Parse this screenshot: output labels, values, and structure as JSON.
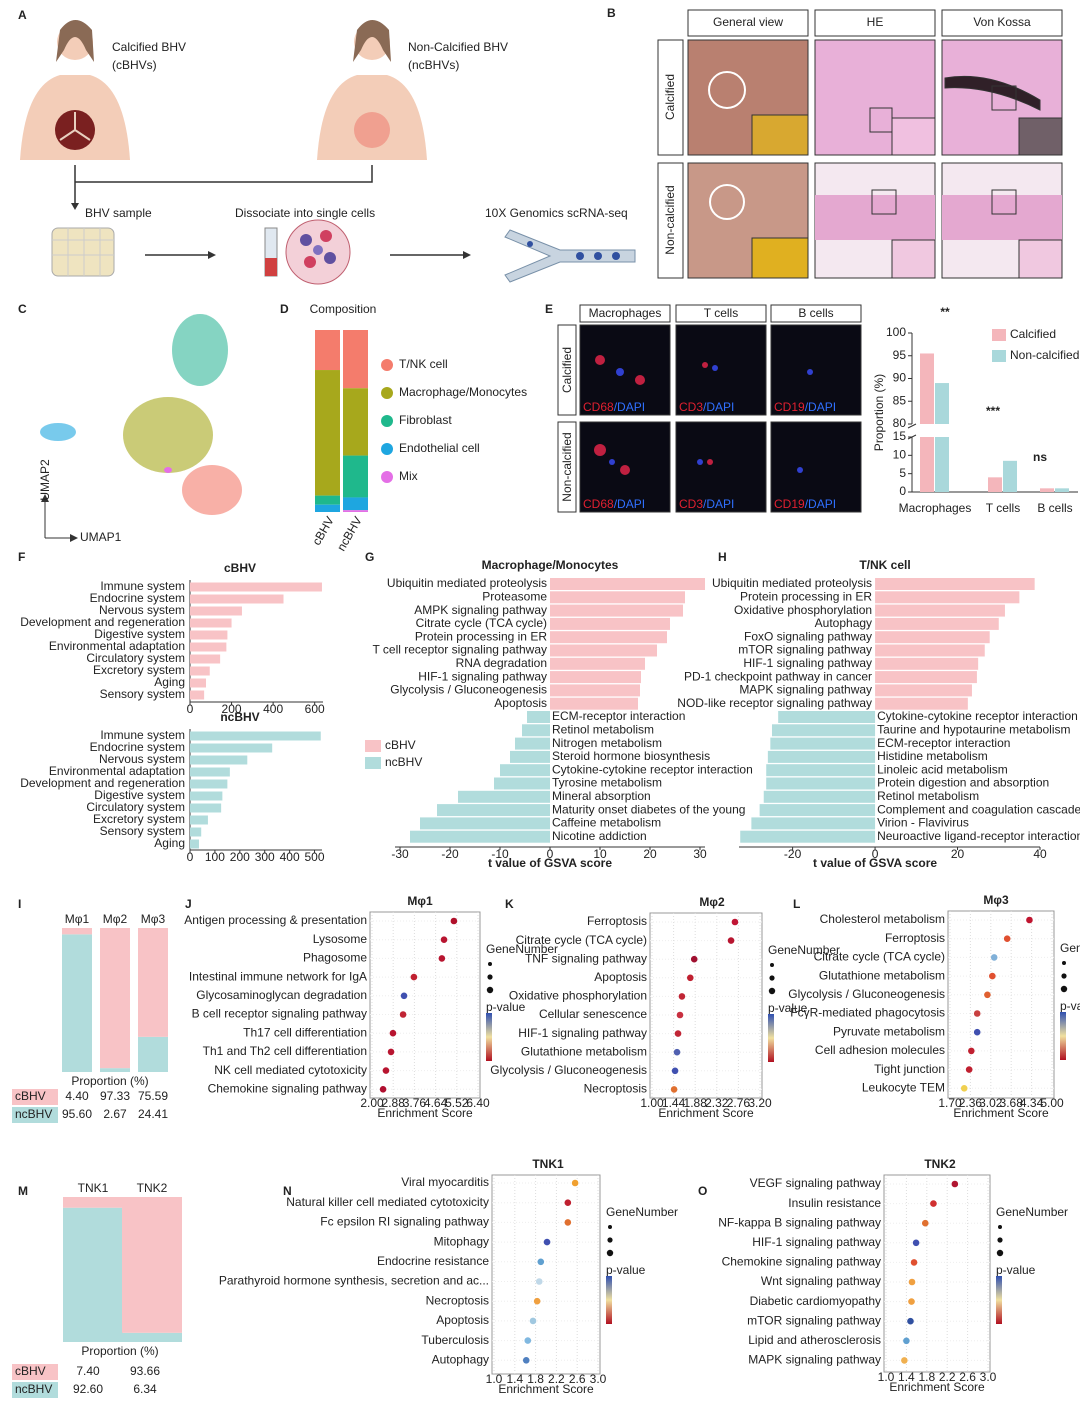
{
  "panel_labels": [
    "A",
    "B",
    "C",
    "D",
    "E",
    "F",
    "G",
    "H",
    "I",
    "J",
    "K",
    "L",
    "M",
    "N",
    "O"
  ],
  "panel_a": {
    "calcified": [
      "Calcified BHV",
      "(cBHVs)"
    ],
    "non_calcified": [
      "Non-Calcified BHV",
      "(ncBHVs)"
    ],
    "steps": [
      "BHV sample",
      "Dissociate into single cells",
      "10X Genomics scRNA-seq"
    ]
  },
  "panel_b": {
    "columns": [
      "General view",
      "HE",
      "Von Kossa"
    ],
    "rows": [
      "Calcified",
      "Non-calcified"
    ]
  },
  "panel_c": {
    "x_label": "UMAP1",
    "y_label": "UMAP2"
  },
  "panel_e": {
    "columns": [
      "Macrophages",
      "T cells",
      "B cells"
    ],
    "rows": [
      "Calcified",
      "Non-calcified"
    ],
    "stains": [
      "CD68",
      "CD3",
      "CD19"
    ],
    "counterstain": "/DAPI"
  },
  "chart_data": [
    {
      "type": "stacked_bar",
      "title": "Composition",
      "categories": [
        "cBHV",
        "ncBHV"
      ],
      "ylim": [
        0,
        100
      ],
      "series": [
        {
          "name": "T/NK cell",
          "color": "#f47c6c",
          "values": [
            22,
            32
          ]
        },
        {
          "name": "Macrophage/Monocytes",
          "color": "#a7a81c",
          "values": [
            69,
            37
          ]
        },
        {
          "name": "Fibroblast",
          "color": "#1fb88c",
          "values": [
            5,
            23
          ]
        },
        {
          "name": "Endothelial cell",
          "color": "#1ea6e0",
          "values": [
            4,
            7
          ]
        },
        {
          "name": "Mix",
          "color": "#e46fe6",
          "values": [
            0,
            1
          ]
        }
      ]
    },
    {
      "type": "broken_bar",
      "y_label": "Proportion (%)",
      "categories": [
        "Macrophages",
        "T cells",
        "B cells"
      ],
      "series": [
        {
          "name": "Calcified",
          "color": "#f4b6bb",
          "values": [
            95.5,
            4,
            1
          ]
        },
        {
          "name": "Non-calcified",
          "color": "#a9d8db",
          "values": [
            89,
            8.5,
            1
          ]
        }
      ],
      "ylim_lower": [
        0,
        15
      ],
      "yticks_lower": [
        0,
        5,
        10,
        15
      ],
      "ylim_upper": [
        80,
        100
      ],
      "yticks_upper": [
        80,
        85,
        90,
        95,
        100
      ],
      "annotations": [
        "**",
        "***",
        "ns"
      ]
    },
    {
      "type": "hbar",
      "title": "cBHV",
      "categories": [
        "Immune system",
        "Endocrine system",
        "Nervous system",
        "Development and regeneration",
        "Digestive system",
        "Environmental adaptation",
        "Circulatory system",
        "Excretory system",
        "Aging",
        "Sensory system"
      ],
      "values": [
        635,
        450,
        250,
        200,
        180,
        175,
        145,
        95,
        77,
        68
      ],
      "xlim": [
        0,
        640
      ],
      "xticks": [
        0,
        200,
        400,
        600
      ],
      "color": "#f8c3c6",
      "highlight_index": 0,
      "highlight_color": "#d7202b"
    },
    {
      "type": "hbar",
      "title": "ncBHV",
      "categories": [
        "Immune system",
        "Endocrine system",
        "Nervous system",
        "Environmental adaptation",
        "Development and regeneration",
        "Digestive system",
        "Circulatory system",
        "Excretory system",
        "Sensory system",
        "Aging"
      ],
      "values": [
        525,
        330,
        230,
        160,
        150,
        130,
        125,
        72,
        45,
        36
      ],
      "xlim": [
        0,
        530
      ],
      "xticks": [
        0,
        100,
        200,
        300,
        400,
        500
      ],
      "color": "#b1dcdc",
      "highlight_index": 0,
      "highlight_color": "#d7202b"
    },
    {
      "type": "diverging",
      "title": "Macrophage/Monocytes",
      "x_label": "t value of GSVA score",
      "categories": [
        "Ubiquitin mediated proteolysis",
        "Proteasome",
        "AMPK signaling pathway",
        "Citrate cycle (TCA cycle)",
        "Protein processing in ER",
        "T cell receptor signaling pathway",
        "RNA degradation",
        "HIF-1 signaling pathway",
        "Glycolysis / Gluconeogenesis",
        "Apoptosis",
        "ECM-receptor interaction",
        "Retinol metabolism",
        "Nitrogen metabolism",
        "Steroid hormone biosynthesis",
        "Cytokine-cytokine receptor interaction",
        "Tyrosine metabolism",
        "Mineral absorption",
        "Maturity onset diabetes of the young",
        "Caffeine metabolism",
        "Nicotine addiction"
      ],
      "values": [
        31,
        27,
        26.6,
        24,
        23.4,
        21.4,
        19,
        18.2,
        18,
        17.6,
        -4.6,
        -5.6,
        -7,
        -8,
        -10,
        -11.2,
        -18.4,
        -22.6,
        -26,
        -28
      ],
      "xlim": [
        -31,
        31
      ],
      "xticks": [
        -30,
        -20,
        -10,
        0,
        10,
        20,
        30
      ],
      "positive_color": "#f8c3c6",
      "negative_color": "#b1dcdc",
      "legend": [
        "cBHV",
        "ncBHV"
      ]
    },
    {
      "type": "diverging",
      "title": "T/NK cell",
      "x_label": "t value of GSVA score",
      "categories": [
        "Ubiquitin mediated proteolysis",
        "Protein processing in ER",
        "Oxidative phosphorylation",
        "Autophagy",
        "FoxO signaling pathway",
        "mTOR signaling pathway",
        "HIF-1 signaling pathway",
        "PD-1 checkpoint pathway in cancer",
        "MAPK signaling pathway",
        "NOD-like receptor signaling pathway",
        "Cytokine-cytokine receptor interaction",
        "Taurine and hypotaurine metabolism",
        "ECM-receptor interaction",
        "Histidine metabolism",
        "Linoleic acid metabolism",
        "Protein digestion and absorption",
        "Retinol metabolism",
        "Complement and coagulation cascades",
        "Virion - Flavivirus",
        "Neuroactive ligand-receptor interaction"
      ],
      "values": [
        38.7,
        35,
        31.5,
        30,
        27.8,
        26.6,
        25,
        24.7,
        23.5,
        22.5,
        -23.5,
        -25,
        -25.4,
        -26,
        -26.4,
        -26.4,
        -27,
        -28,
        -30,
        -32.7
      ],
      "xlim": [
        -33,
        40
      ],
      "xticks": [
        -20,
        0,
        20,
        40
      ],
      "positive_color": "#f8c3c6",
      "negative_color": "#b1dcdc"
    },
    {
      "type": "proportion",
      "categories": [
        "Mφ1",
        "Mφ2",
        "Mφ3"
      ],
      "x_label": "Proportion (%)",
      "ylim": [
        0,
        100
      ],
      "series": [
        {
          "name": "cBHV",
          "color": "#f8c3c6",
          "values": [
            4.4,
            97.33,
            75.59
          ],
          "value_labels": [
            "4.40",
            "97.33",
            "75.59"
          ]
        },
        {
          "name": "ncBHV",
          "color": "#b1dcdc",
          "values": [
            95.6,
            2.67,
            24.41
          ],
          "value_labels": [
            "95.60",
            "2.67",
            "24.41"
          ]
        }
      ]
    },
    {
      "type": "dot",
      "title": "Mφ1",
      "x_label": "Enrichment Score",
      "legend_titles": [
        "GeneNumber",
        "p-value"
      ],
      "categories": [
        "Antigen processing & presentation",
        "Lysosome",
        "Phagosome",
        "Intestinal immune network for IgA",
        "Glycosaminoglycan degradation",
        "B cell receptor signaling pathway",
        "Th17 cell differentiation",
        "Th1 and Th2 cell differentiation",
        "NK cell mediated cytotoxicity",
        "Chemokine signaling pathway"
      ],
      "values": [
        5.4,
        4.99,
        4.9,
        3.74,
        3.33,
        3.29,
        2.87,
        2.79,
        2.58,
        2.46
      ],
      "colors": [
        "#b0102a",
        "#b81530",
        "#b81530",
        "#c02030",
        "#4050b0",
        "#c02535",
        "#b81530",
        "#b81530",
        "#b81530",
        "#b01030"
      ],
      "xlim": [
        2,
        6.4
      ],
      "xticks": [
        {
          "value": 2,
          "label": "2.00"
        },
        2.88,
        3.76,
        4.64,
        5.52,
        {
          "value": 6.4,
          "label": "6.40"
        }
      ]
    },
    {
      "type": "dot",
      "title": "Mφ2",
      "x_label": "Enrichment Score",
      "legend_titles": [
        "GeneNumber",
        "p-value"
      ],
      "categories": [
        "Ferroptosis",
        "Citrate cycle (TCA cycle)",
        "TNF signaling pathway",
        "Apoptosis",
        "Oxidative phosphorylation",
        "Cellular senescence",
        "HIF-1 signaling pathway",
        "Glutathione metabolism",
        "Glycolysis / Gluconeogenesis",
        "Necroptosis"
      ],
      "values": [
        2.69,
        2.61,
        1.86,
        1.78,
        1.61,
        1.57,
        1.53,
        1.51,
        1.47,
        1.45
      ],
      "colors": [
        "#c01535",
        "#b81530",
        "#a01030",
        "#c02030",
        "#c02535",
        "#c83040",
        "#c02535",
        "#5060b0",
        "#4050b0",
        "#e07030"
      ],
      "xlim": [
        1,
        3.2
      ],
      "xticks": [
        {
          "value": 1,
          "label": "1.00"
        },
        1.44,
        1.88,
        2.32,
        2.76,
        {
          "value": 3.2,
          "label": "3.20"
        }
      ]
    },
    {
      "type": "dot",
      "title": "Mφ3",
      "x_label": "Enrichment Score",
      "legend_titles": [
        "GeneNumber",
        "p-value"
      ],
      "categories": [
        "Cholesterol metabolism",
        "Ferroptosis",
        "Citrate cycle (TCA cycle)",
        "Glutathione metabolism",
        "Glycolysis / Gluconeogenesis",
        "FcγR-mediated phagocytosis",
        "Pyruvate metabolism",
        "Cell adhesion molecules",
        "Tight junction",
        "Leukocyte TEM"
      ],
      "values": [
        4.27,
        3.55,
        3.13,
        3.07,
        2.91,
        2.58,
        2.58,
        2.39,
        2.32,
        2.16
      ],
      "colors": [
        "#c01530",
        "#e05030",
        "#80b0d8",
        "#e05030",
        "#e06030",
        "#c84040",
        "#4050b0",
        "#c02030",
        "#c02030",
        "#f0d050"
      ],
      "xlim": [
        1.7,
        5
      ],
      "xticks": [
        {
          "value": 1.7,
          "label": "1.70"
        },
        2.36,
        3.02,
        3.68,
        4.34,
        {
          "value": 5,
          "label": "5.00"
        }
      ]
    },
    {
      "type": "proportion",
      "categories": [
        "TNK1",
        "TNK2"
      ],
      "x_label": "Proportion (%)",
      "ylim": [
        0,
        100
      ],
      "series": [
        {
          "name": "cBHV",
          "color": "#f8c3c6",
          "values": [
            7.4,
            93.66
          ],
          "value_labels": [
            "7.40",
            "93.66"
          ]
        },
        {
          "name": "ncBHV",
          "color": "#b1dcdc",
          "values": [
            92.6,
            6.34
          ],
          "value_labels": [
            "92.60",
            "6.34"
          ]
        }
      ]
    },
    {
      "type": "dot",
      "title": "TNK1",
      "x_label": "Enrichment Score",
      "legend_titles": [
        "GeneNumber",
        "p-value"
      ],
      "categories": [
        "Viral myocarditis",
        "Natural killer cell mediated cytotoxicity",
        "Fc epsilon RI signaling pathway",
        "Mitophagy",
        "Endocrine resistance",
        "Parathyroid hormone synthesis, secretion and ac...",
        "Necroptosis",
        "Apoptosis",
        "Tuberculosis",
        "Autophagy"
      ],
      "values": [
        2.56,
        2.42,
        2.42,
        2.02,
        1.9,
        1.87,
        1.83,
        1.75,
        1.65,
        1.62
      ],
      "colors": [
        "#f0a030",
        "#c02030",
        "#e07030",
        "#4050b0",
        "#60a0d0",
        "#c0d8e8",
        "#f0a040",
        "#a0c8e0",
        "#80b8e0",
        "#5080c0"
      ],
      "xlim": [
        1,
        3
      ],
      "xticks": [
        {
          "value": 1,
          "label": "1.0"
        },
        1.4,
        1.8,
        2.2,
        2.6,
        {
          "value": 3,
          "label": "3.0"
        }
      ]
    },
    {
      "type": "dot",
      "title": "TNK2",
      "x_label": "Enrichment Score",
      "legend_titles": [
        "GeneNumber",
        "p-value"
      ],
      "categories": [
        "VEGF signaling pathway",
        "Insulin resistance",
        "NF-kappa B signaling pathway",
        "HIF-1 signaling pathway",
        "Chemokine signaling pathway",
        "Wnt signaling pathway",
        "Diabetic cardiomyopathy",
        "mTOR signaling pathway",
        "Lipid and atherosclerosis",
        "MAPK signaling pathway"
      ],
      "values": [
        2.35,
        1.93,
        1.77,
        1.59,
        1.55,
        1.51,
        1.5,
        1.48,
        1.4,
        1.36
      ],
      "colors": [
        "#b01530",
        "#d03030",
        "#e07030",
        "#4050b0",
        "#e05030",
        "#f0a040",
        "#f0a040",
        "#3050a0",
        "#60a0d0",
        "#f0b050"
      ],
      "xlim": [
        1,
        3
      ],
      "xticks": [
        {
          "value": 1,
          "label": "1.0"
        },
        1.4,
        1.8,
        2.2,
        2.6,
        {
          "value": 3,
          "label": "3.0"
        }
      ]
    }
  ]
}
